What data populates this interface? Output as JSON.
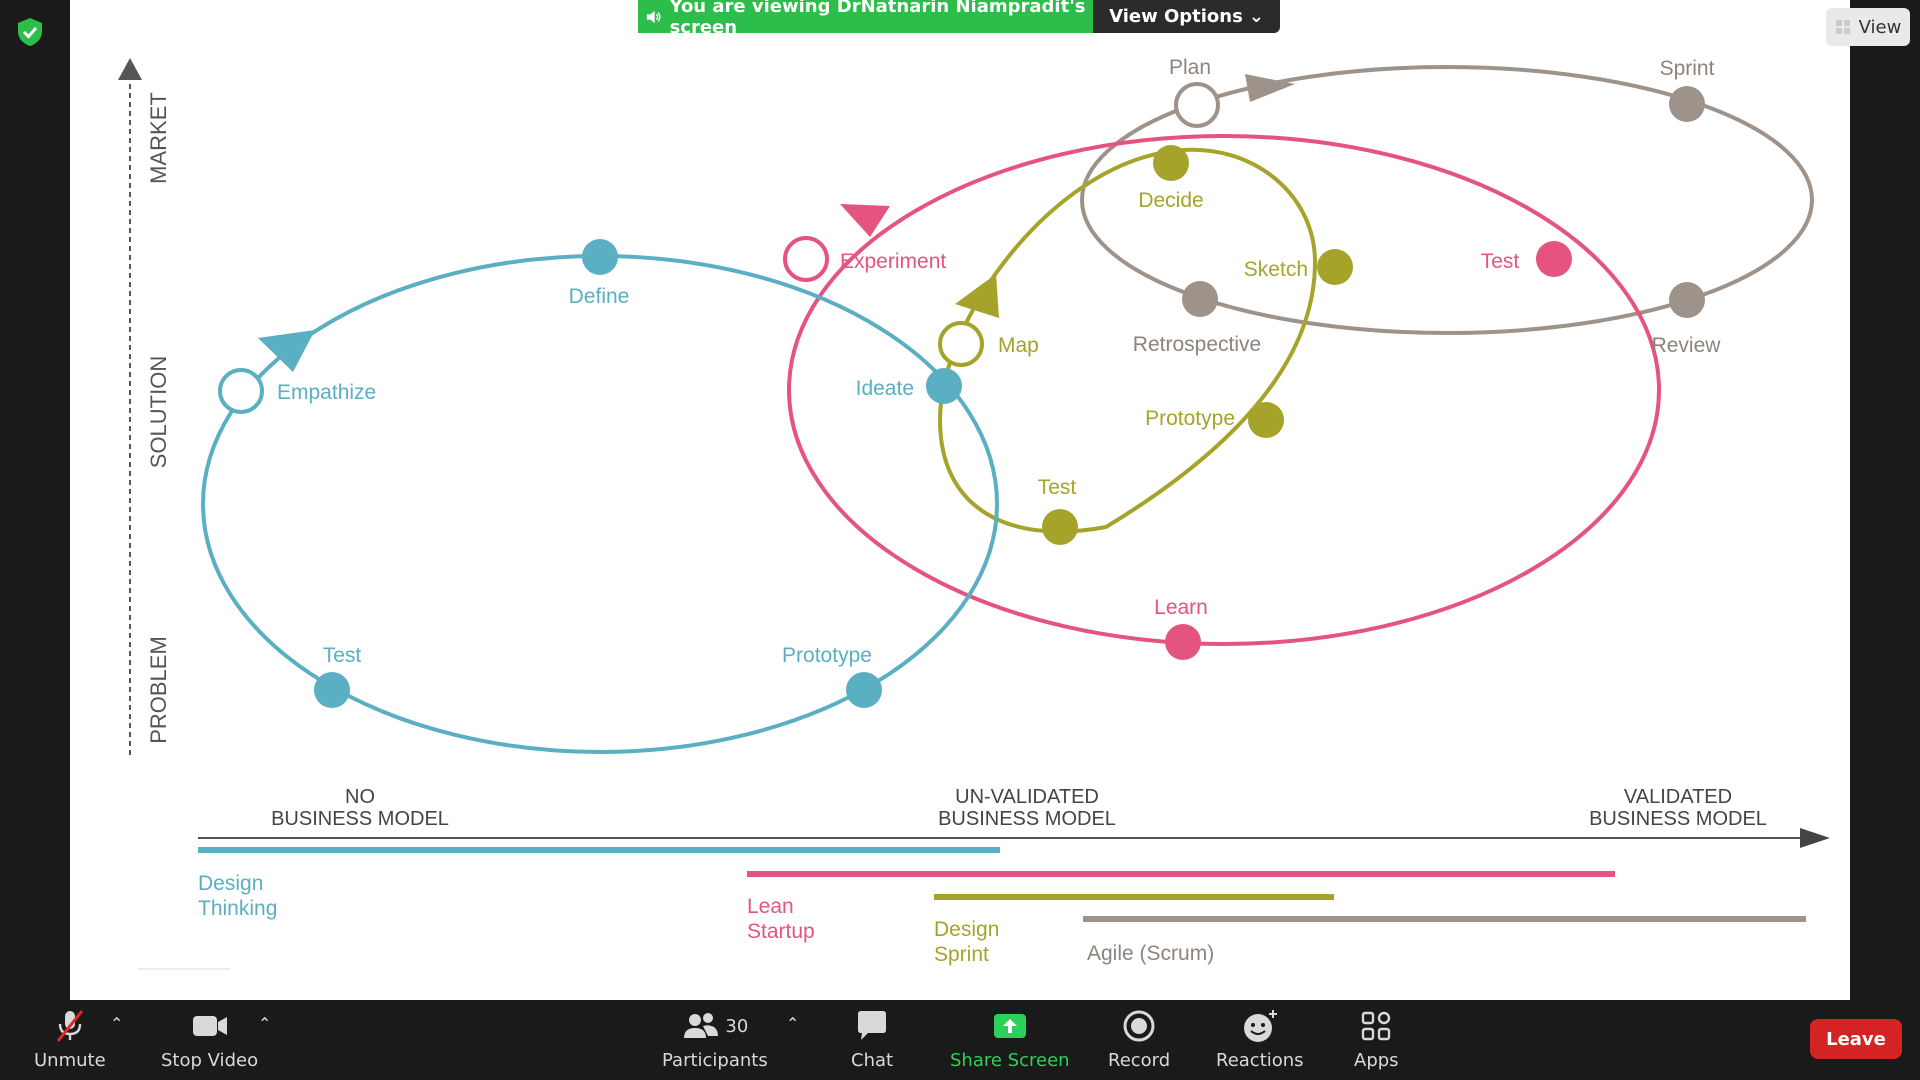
{
  "banner": {
    "viewing_text": "You are viewing DrNatnarin Niampradit's screen",
    "view_options_label": "View Options"
  },
  "view_button_label": "View",
  "diagram": {
    "axis_vertical": {
      "market": "MARKET",
      "solution": "SOLUTION",
      "problem": "PROBLEM"
    },
    "axis_horizontal": {
      "no_bm_line1": "NO",
      "no_bm_line2": "BUSINESS MODEL",
      "unval_line1": "UN-VALIDATED",
      "unval_line2": "BUSINESS MODEL",
      "val_line1": "VALIDATED",
      "val_line2": "BUSINESS MODEL"
    },
    "design_thinking": {
      "color": "#5aafc2",
      "nodes": {
        "empathize": "Empathize",
        "define": "Define",
        "ideate": "Ideate",
        "prototype": "Prototype",
        "test": "Test"
      },
      "legend_line1": "Design",
      "legend_line2": "Thinking"
    },
    "lean_startup": {
      "color": "#e4547f",
      "nodes": {
        "experiment": "Experiment",
        "test": "Test",
        "learn": "Learn"
      },
      "legend_line1": "Lean",
      "legend_line2": "Startup"
    },
    "design_sprint": {
      "color": "#a5a32a",
      "nodes": {
        "map": "Map",
        "decide": "Decide",
        "sketch": "Sketch",
        "prototype": "Prototype",
        "test": "Test"
      },
      "legend_line1": "Design",
      "legend_line2": "Sprint"
    },
    "agile": {
      "color": "#9d938b",
      "nodes": {
        "plan": "Plan",
        "sprint": "Sprint",
        "review": "Review",
        "retrospective": "Retrospective"
      },
      "legend": "Agile (Scrum)"
    }
  },
  "toolbar": {
    "unmute": "Unmute",
    "stop_video": "Stop Video",
    "participants": "Participants",
    "participants_count": "30",
    "chat": "Chat",
    "share_screen": "Share Screen",
    "record": "Record",
    "reactions": "Reactions",
    "apps": "Apps",
    "leave": "Leave"
  }
}
